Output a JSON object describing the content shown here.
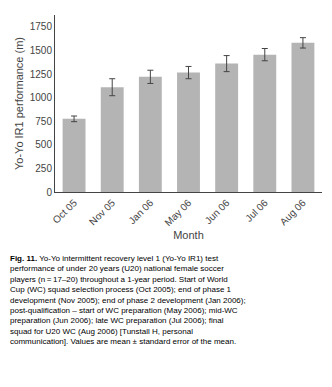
{
  "chart_data": {
    "type": "bar",
    "categories": [
      "Oct 05",
      "Nov 05",
      "Jan 06",
      "May 06",
      "Jun 06",
      "Jul 06",
      "Aug 06"
    ],
    "values": [
      775,
      1110,
      1220,
      1265,
      1360,
      1455,
      1580
    ],
    "errors": [
      30,
      90,
      70,
      65,
      85,
      65,
      55
    ],
    "color": "#b4b4b4",
    "ylabel": "Yo-Yo IR1 performance (m)",
    "xlabel": "Month",
    "ylim": [
      0,
      1875
    ],
    "yticks": [
      0,
      250,
      500,
      750,
      1000,
      1250,
      1500,
      1750
    ],
    "grid": false,
    "annotations": [
      "Fig. 11.",
      "Yo-Yo intermittent recovery level 1 (Yo-Yo IR1) test performance of under 20 years (U20) national female soccer players (n = 17–20) throughout a 1-year period. Start of World Cup (WC) squad selection process (Oct 2005); end of phase 1 development (Nov 2005); end of phase 2 development (Jan 2006); post-qualification – start of WC preparation (May 2006); mid-WC preparation (Jun 2006); late WC preparation (Jul 2006); final squad for U20 WC (Aug 2006) [Tunstall H, personal communication]. Values are mean ± standard error of the mean."
    ]
  }
}
